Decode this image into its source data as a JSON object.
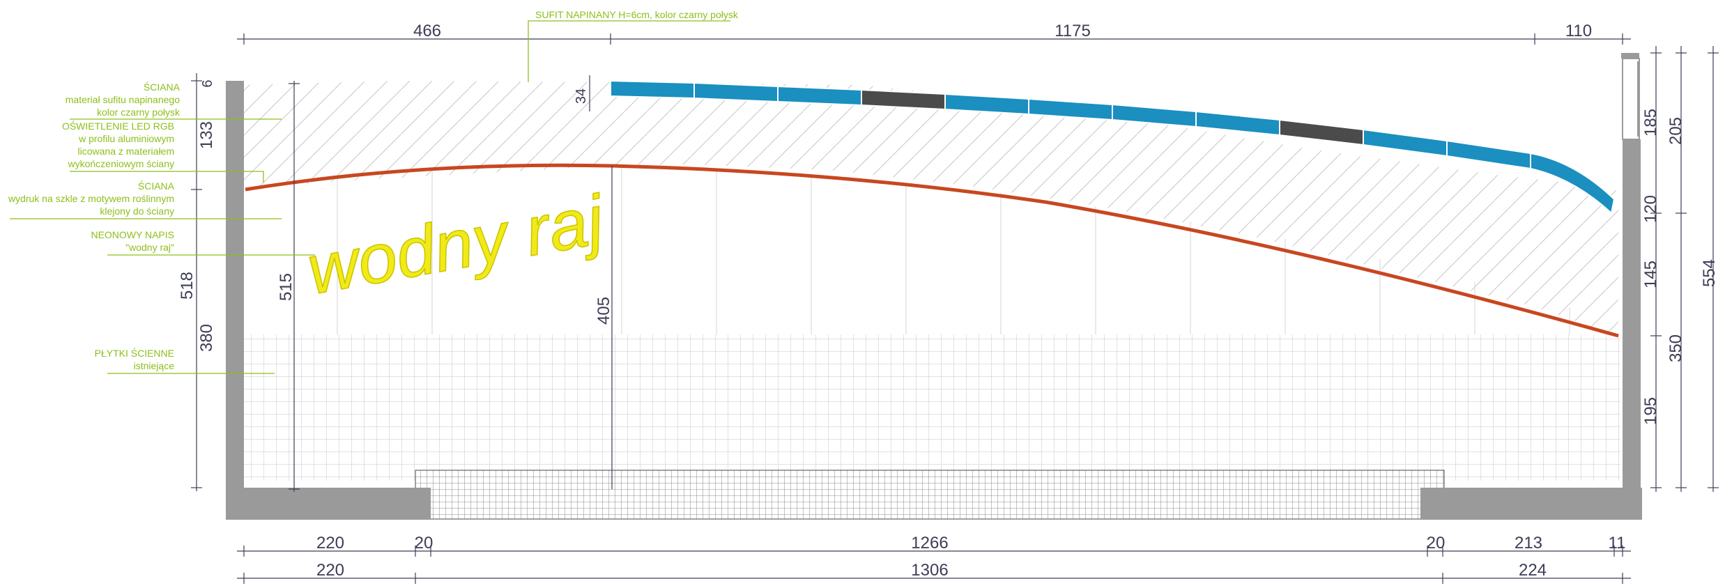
{
  "drawing": {
    "colors": {
      "wall": "#9a9a9a",
      "ceiling_blue": "#1a8fc0",
      "ceiling_dark": "#4b4b4b",
      "led_line": "#c8471f",
      "neon": "#f2ea16",
      "label_green": "#8dbf1a",
      "dim_line": "#3d3d55",
      "tile_grid": "#c4c4c4",
      "hatch": "#c6c6c6"
    },
    "neon_text": "wodny raj",
    "labels": {
      "ceiling_note": "SUFIT NAPINANY H=6cm, kolor czarny połysk",
      "wall1_title": "ŚCIANA",
      "wall1_line1": "materiał sufitu napinanego",
      "wall1_line2": "kolor czarny połysk",
      "led_line1": "OŚWIETLENIE LED RGB",
      "led_line2": "w profilu aluminiowym",
      "led_line3": "licowana z materiałem",
      "led_line4": "wykończeniowym ściany",
      "wall2_title": "ŚCIANA",
      "wall2_line1": "wydruk na szkle z motywem roślinnym",
      "wall2_line2": "klejony do ściany",
      "neon_title": "NEONOWY NAPIS",
      "neon_value": "\"wodny raj\"",
      "tiles_title": "PŁYTKI ŚCIENNE",
      "tiles_value": "istniejące"
    },
    "dims": {
      "top_466": "466",
      "top_1175": "1175",
      "top_110": "110",
      "left_6": "6",
      "left_133": "133",
      "left_518": "518",
      "left_380": "380",
      "inner_515": "515",
      "mid_34": "34",
      "mid_405": "405",
      "right_185": "185",
      "right_205": "205",
      "right_120": "120",
      "right_145": "145",
      "right_554": "554",
      "right_350": "350",
      "right_195": "195",
      "bot1_220": "220",
      "bot1_20a": "20",
      "bot1_1266": "1266",
      "bot1_20b": "20",
      "bot1_213": "213",
      "bot1_11": "11",
      "bot2_220": "220",
      "bot2_1306": "1306",
      "bot2_224": "224"
    }
  }
}
